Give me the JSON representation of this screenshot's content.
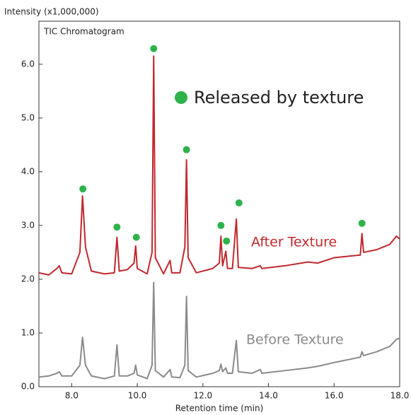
{
  "chart_data": {
    "type": "line",
    "title": "TIC Chromatogram",
    "y_label": "Intensity (x1,000,000)",
    "x_label": "Retention time (min)",
    "annotation": "Released by texture",
    "x": [
      7.0,
      7.3,
      7.55,
      7.62,
      7.7,
      8.0,
      8.25,
      8.33,
      8.42,
      8.6,
      9.0,
      9.3,
      9.38,
      9.45,
      9.7,
      9.9,
      9.95,
      10.0,
      10.3,
      10.45,
      10.5,
      10.55,
      10.8,
      11.0,
      11.05,
      11.3,
      11.45,
      11.5,
      11.55,
      11.8,
      12.3,
      12.5,
      12.55,
      12.6,
      12.7,
      12.75,
      12.9,
      13.02,
      13.08,
      13.5,
      13.75,
      13.8,
      14.5,
      15.2,
      15.5,
      16.0,
      16.8,
      16.85,
      16.9,
      17.3,
      17.7,
      17.9,
      18.0
    ],
    "series": [
      {
        "name": "After Texture",
        "color": "#c0282d",
        "values": [
          2.12,
          2.08,
          2.2,
          2.25,
          2.12,
          2.1,
          2.5,
          3.55,
          2.6,
          2.15,
          2.1,
          2.12,
          2.78,
          2.15,
          2.18,
          2.3,
          2.62,
          2.2,
          2.1,
          2.5,
          6.15,
          2.4,
          2.1,
          2.35,
          2.12,
          2.12,
          2.6,
          4.22,
          2.4,
          2.12,
          2.2,
          2.3,
          2.8,
          2.25,
          2.52,
          2.2,
          2.2,
          3.12,
          2.22,
          2.2,
          2.25,
          2.2,
          2.25,
          2.32,
          2.3,
          2.4,
          2.45,
          2.85,
          2.5,
          2.55,
          2.65,
          2.8,
          2.75
        ]
      },
      {
        "name": "Before Texture",
        "color": "#8a8a8a",
        "values": [
          0.18,
          0.2,
          0.25,
          0.28,
          0.2,
          0.2,
          0.4,
          0.92,
          0.4,
          0.2,
          0.15,
          0.2,
          0.78,
          0.2,
          0.2,
          0.25,
          0.4,
          0.22,
          0.15,
          0.4,
          1.94,
          0.3,
          0.18,
          0.32,
          0.18,
          0.17,
          0.4,
          1.68,
          0.3,
          0.18,
          0.25,
          0.3,
          0.42,
          0.28,
          0.35,
          0.25,
          0.25,
          0.86,
          0.28,
          0.25,
          0.32,
          0.25,
          0.3,
          0.35,
          0.38,
          0.45,
          0.55,
          0.65,
          0.58,
          0.65,
          0.75,
          0.88,
          0.9
        ]
      }
    ],
    "markers": {
      "color": "#2db34a",
      "x": [
        8.34,
        9.38,
        9.97,
        10.5,
        11.5,
        12.55,
        12.72,
        13.1,
        16.85
      ],
      "y": [
        3.68,
        2.97,
        2.78,
        6.29,
        4.41,
        3.0,
        2.71,
        3.42,
        3.04
      ]
    },
    "xlim": [
      7.0,
      18.0
    ],
    "ylim": [
      0,
      6.8
    ],
    "xticks": [
      {
        "value": 8,
        "label": "8.0"
      },
      {
        "value": 10,
        "label": "10.0"
      },
      {
        "value": 12,
        "label": "12.0"
      },
      {
        "value": 14,
        "label": "14.0"
      },
      {
        "value": 16,
        "label": "16.0"
      },
      {
        "value": 18,
        "label": "18.0"
      }
    ],
    "yticks": [
      {
        "value": 0,
        "label": "0.0"
      },
      {
        "value": 1,
        "label": "1.0"
      },
      {
        "value": 2,
        "label": "2.0"
      },
      {
        "value": 3,
        "label": "3.0"
      },
      {
        "value": 4,
        "label": "4.0"
      },
      {
        "value": 5,
        "label": "5.0"
      },
      {
        "value": 6,
        "label": "6.0"
      }
    ]
  }
}
